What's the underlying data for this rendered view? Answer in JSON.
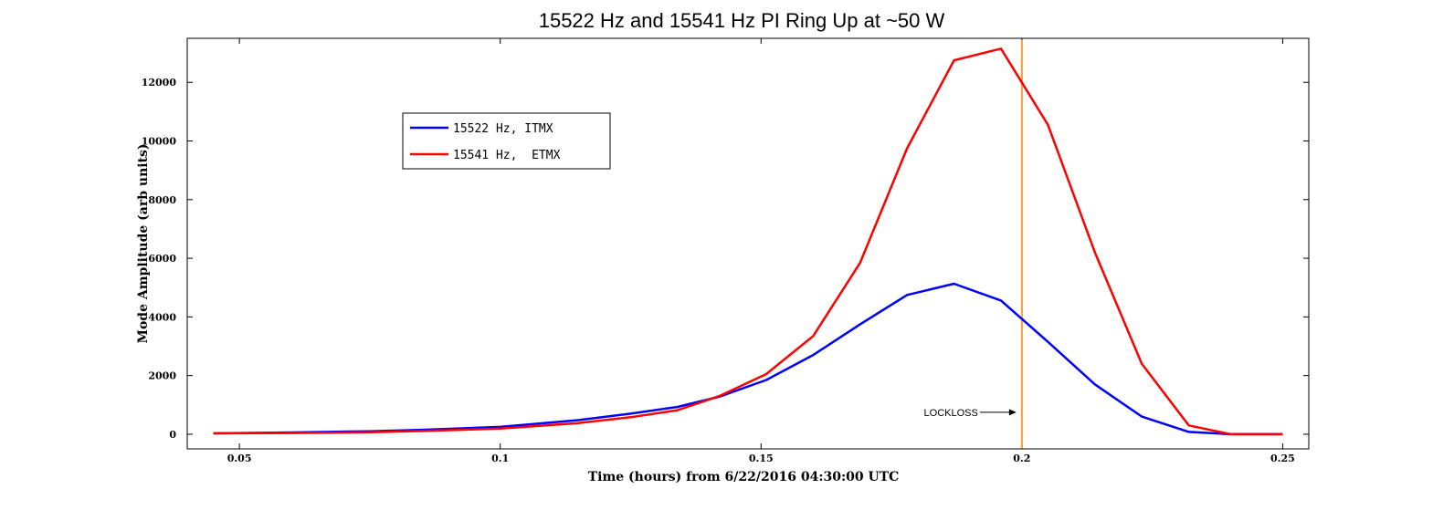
{
  "chart_data": {
    "type": "line",
    "title": "15522 Hz and 15541 Hz PI Ring Up at ~50 W",
    "xlabel": "Time (hours) from 6/22/2016 04:30:00 UTC",
    "ylabel": "Mode Amplitude (arb units)",
    "xlim": [
      0.04,
      0.255
    ],
    "ylim": [
      -500,
      13500
    ],
    "xticks": [
      0.05,
      0.1,
      0.15,
      0.2,
      0.25
    ],
    "xtick_labels": [
      "0.05",
      "0.1",
      "0.15",
      "0.2",
      "0.25"
    ],
    "yticks": [
      0,
      2000,
      4000,
      6000,
      8000,
      10000,
      12000
    ],
    "ytick_labels": [
      "0",
      "2000",
      "4000",
      "6000",
      "8000",
      "10000",
      "12000"
    ],
    "grid": false,
    "legend_position": "top-left",
    "series": [
      {
        "name": "15522 Hz, ITMX",
        "color": "#0000ff",
        "x": [
          0.045,
          0.06,
          0.075,
          0.085,
          0.1,
          0.115,
          0.125,
          0.134,
          0.142,
          0.151,
          0.16,
          0.169,
          0.178,
          0.187,
          0.196,
          0.205,
          0.214,
          0.223,
          0.232,
          0.24,
          0.25
        ],
        "y": [
          30,
          60,
          100,
          150,
          250,
          480,
          700,
          930,
          1280,
          1850,
          2700,
          3750,
          4750,
          5130,
          4560,
          3150,
          1700,
          600,
          80,
          0,
          0
        ]
      },
      {
        "name": "15541 Hz,  ETMX",
        "color": "#ff0000",
        "x": [
          0.045,
          0.06,
          0.075,
          0.085,
          0.1,
          0.115,
          0.125,
          0.134,
          0.142,
          0.151,
          0.16,
          0.169,
          0.178,
          0.187,
          0.196,
          0.205,
          0.214,
          0.223,
          0.232,
          0.24,
          0.25
        ],
        "y": [
          30,
          40,
          70,
          110,
          190,
          380,
          580,
          820,
          1300,
          2050,
          3350,
          5850,
          9750,
          12750,
          13150,
          10550,
          6200,
          2400,
          300,
          0,
          0
        ]
      }
    ],
    "vline": {
      "x": 0.2,
      "color": "#ff9933"
    },
    "annotation": {
      "text": "LOCKLOSS",
      "x": 0.2,
      "y": 750
    }
  }
}
